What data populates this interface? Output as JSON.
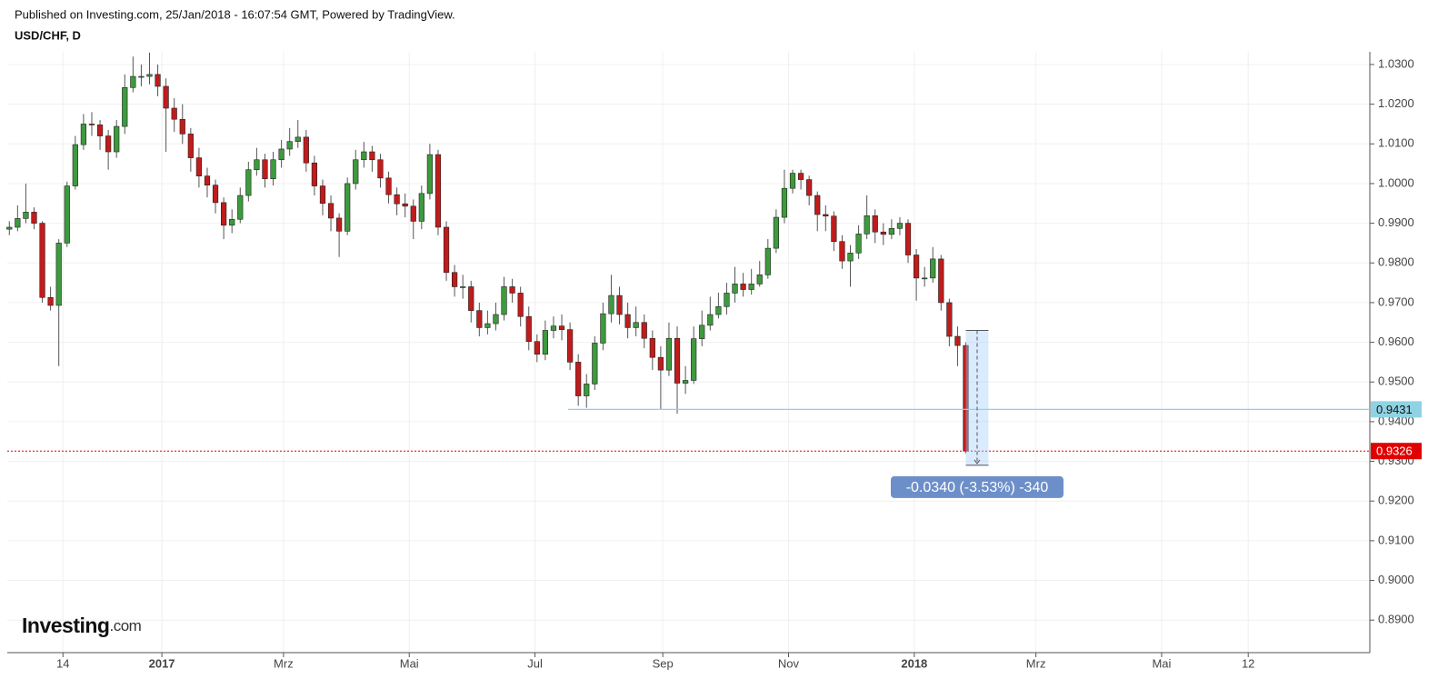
{
  "chart_data": {
    "type": "candlestick",
    "subtitle": "Published on Investing.com, 25/Jan/2018 - 16:07:54 GMT, Powered by TradingView.",
    "title": "USD/CHF, D",
    "logo": {
      "name": "Investing",
      "suffix": ".com"
    },
    "up_color": "#3d9a3d",
    "down_color": "#c01c1c",
    "grid": true,
    "xlim": [
      0,
      661
    ],
    "ylim": [
      0.8818,
      1.0332
    ],
    "xticks": [
      {
        "value": 27,
        "label": "14"
      },
      {
        "value": 75,
        "label": "2017"
      },
      {
        "value": 134,
        "label": "Mrz"
      },
      {
        "value": 195,
        "label": "Mai"
      },
      {
        "value": 256,
        "label": "Jul"
      },
      {
        "value": 318,
        "label": "Sep"
      },
      {
        "value": 379,
        "label": "Nov"
      },
      {
        "value": 440,
        "label": "2018"
      },
      {
        "value": 499,
        "label": "Mrz"
      },
      {
        "value": 560,
        "label": "Mai"
      },
      {
        "value": 602,
        "label": "12"
      }
    ],
    "yticks": [
      {
        "value": 0.89,
        "label": "0.8900"
      },
      {
        "value": 0.9,
        "label": "0.9000"
      },
      {
        "value": 0.91,
        "label": "0.9100"
      },
      {
        "value": 0.92,
        "label": "0.9200"
      },
      {
        "value": 0.93,
        "label": "0.9300"
      },
      {
        "value": 0.94,
        "label": "0.9400"
      },
      {
        "value": 0.95,
        "label": "0.9500"
      },
      {
        "value": 0.96,
        "label": "0.9600"
      },
      {
        "value": 0.97,
        "label": "0.9700"
      },
      {
        "value": 0.98,
        "label": "0.9800"
      },
      {
        "value": 0.99,
        "label": "0.9900"
      },
      {
        "value": 1.0,
        "label": "1.0000"
      },
      {
        "value": 1.01,
        "label": "1.0100"
      },
      {
        "value": 1.02,
        "label": "1.0200"
      },
      {
        "value": 1.03,
        "label": "1.0300"
      }
    ],
    "x": [
      1,
      5,
      9,
      13,
      17,
      21,
      25,
      29,
      33,
      37,
      41,
      45,
      49,
      53,
      57,
      61,
      65,
      69,
      73,
      77,
      81,
      85,
      89,
      93,
      97,
      101,
      105,
      109,
      113,
      117,
      121,
      125,
      129,
      133,
      137,
      141,
      145,
      149,
      153,
      157,
      161,
      165,
      169,
      173,
      177,
      181,
      185,
      189,
      193,
      197,
      201,
      205,
      209,
      213,
      217,
      221,
      225,
      229,
      233,
      237,
      241,
      245,
      249,
      253,
      257,
      261,
      265,
      269,
      273,
      277,
      281,
      285,
      289,
      293,
      297,
      301,
      305,
      309,
      313,
      317,
      321,
      325,
      329,
      333,
      337,
      341,
      345,
      349,
      353,
      357,
      361,
      365,
      369,
      373,
      377,
      381,
      385,
      389,
      393,
      397,
      401,
      405,
      409,
      413,
      417,
      421,
      425,
      429,
      433,
      437,
      441,
      445,
      449,
      453,
      457,
      461,
      465
    ],
    "open": [
      0.9885,
      0.989,
      0.9912,
      0.9928,
      0.99,
      0.9713,
      0.9693,
      0.985,
      0.9994,
      1.0098,
      1.015,
      1.0148,
      1.012,
      1.008,
      1.0144,
      1.0242,
      1.027,
      1.027,
      1.0275,
      1.0245,
      1.019,
      1.0162,
      1.0125,
      1.0065,
      1.0019,
      0.9996,
      0.9952,
      0.9895,
      0.991,
      0.997,
      1.0035,
      1.006,
      1.0012,
      1.006,
      1.0087,
      1.0106,
      1.0117,
      1.0052,
      0.9994,
      0.995,
      0.9913,
      0.988,
      1.0,
      1.006,
      1.008,
      1.006,
      1.0014,
      0.9972,
      0.9949,
      0.9943,
      0.9905,
      0.9975,
      1.0073,
      0.989,
      0.9776,
      0.974,
      0.974,
      0.968,
      0.9637,
      0.9647,
      0.967,
      0.974,
      0.9724,
      0.9665,
      0.9602,
      0.957,
      0.963,
      0.9641,
      0.9632,
      0.955,
      0.9465,
      0.9495,
      0.9598,
      0.9672,
      0.9718,
      0.967,
      0.9637,
      0.965,
      0.961,
      0.9562,
      0.953,
      0.961,
      0.9497,
      0.9504,
      0.9609,
      0.9643,
      0.967,
      0.969,
      0.9724,
      0.9747,
      0.9733,
      0.9747,
      0.977,
      0.9837,
      0.9915,
      0.9988,
      1.0026,
      1.001,
      0.997,
      0.9922,
      0.9918,
      0.9854,
      0.9805,
      0.9825,
      0.9873,
      0.9919,
      0.9878,
      0.9872,
      0.9887,
      0.99,
      0.982,
      0.9762,
      0.9762,
      0.981,
      0.97,
      0.9615,
      0.9592
    ],
    "high": [
      0.9905,
      0.9945,
      1.0,
      0.994,
      0.9905,
      0.974,
      0.986,
      1.0005,
      1.012,
      1.0175,
      1.018,
      1.016,
      1.0135,
      1.016,
      1.0275,
      1.032,
      1.03,
      1.033,
      1.03,
      1.0265,
      1.0215,
      1.02,
      1.014,
      1.009,
      1.004,
      1.001,
      0.9965,
      0.9935,
      0.999,
      1.0055,
      1.009,
      1.0075,
      1.008,
      1.011,
      1.014,
      1.016,
      1.0135,
      1.007,
      1.001,
      0.997,
      0.9925,
      1.0015,
      1.0085,
      1.0105,
      1.0095,
      1.0075,
      1.003,
      0.999,
      0.9975,
      0.996,
      0.9995,
      1.01,
      1.0085,
      0.9905,
      0.9795,
      0.977,
      0.9755,
      0.97,
      0.968,
      0.97,
      0.9765,
      0.976,
      0.974,
      0.969,
      0.962,
      0.9655,
      0.9665,
      0.967,
      0.965,
      0.957,
      0.952,
      0.9615,
      0.97,
      0.977,
      0.974,
      0.97,
      0.969,
      0.967,
      0.963,
      0.959,
      0.965,
      0.964,
      0.954,
      0.964,
      0.968,
      0.9715,
      0.9725,
      0.975,
      0.979,
      0.9775,
      0.9785,
      0.9805,
      0.986,
      0.9935,
      1.0035,
      1.0035,
      1.0035,
      1.002,
      0.998,
      0.9945,
      0.993,
      0.987,
      0.9845,
      0.9895,
      0.997,
      0.9935,
      0.99,
      0.991,
      0.9915,
      0.991,
      0.9835,
      0.979,
      0.984,
      0.982,
      0.971,
      0.964,
      0.96
    ],
    "low": [
      0.987,
      0.988,
      0.99,
      0.9885,
      0.97,
      0.968,
      0.954,
      0.984,
      0.9985,
      1.0085,
      1.012,
      1.0085,
      1.0035,
      1.0065,
      1.0125,
      1.023,
      1.0245,
      1.025,
      1.022,
      1.008,
      1.013,
      1.01,
      1.003,
      0.999,
      0.9965,
      0.9925,
      0.986,
      0.9875,
      0.99,
      0.9955,
      1.002,
      0.999,
      0.9995,
      1.004,
      1.007,
      1.009,
      1.003,
      0.997,
      0.992,
      0.988,
      0.9815,
      0.987,
      0.9985,
      1.004,
      1.003,
      0.999,
      0.995,
      0.992,
      0.9915,
      0.986,
      0.9885,
      0.996,
      0.987,
      0.9755,
      0.9715,
      0.971,
      0.965,
      0.9615,
      0.962,
      0.963,
      0.9655,
      0.97,
      0.964,
      0.958,
      0.955,
      0.9555,
      0.961,
      0.9605,
      0.953,
      0.944,
      0.9435,
      0.948,
      0.958,
      0.965,
      0.9645,
      0.961,
      0.9615,
      0.9585,
      0.953,
      0.943,
      0.9515,
      0.942,
      0.947,
      0.9495,
      0.959,
      0.963,
      0.966,
      0.967,
      0.97,
      0.9715,
      0.972,
      0.974,
      0.976,
      0.9825,
      0.99,
      0.9975,
      0.9985,
      0.9945,
      0.988,
      0.988,
      0.983,
      0.9785,
      0.974,
      0.981,
      0.986,
      0.985,
      0.9845,
      0.986,
      0.987,
      0.98,
      0.9705,
      0.974,
      0.975,
      0.968,
      0.959,
      0.954,
      0.932
    ],
    "close": [
      0.989,
      0.9912,
      0.9928,
      0.99,
      0.9713,
      0.9693,
      0.985,
      0.9994,
      1.0098,
      1.015,
      1.0148,
      1.012,
      1.008,
      1.0144,
      1.0242,
      1.027,
      1.027,
      1.0275,
      1.0245,
      1.019,
      1.0162,
      1.0125,
      1.0065,
      1.0019,
      0.9996,
      0.9952,
      0.9895,
      0.991,
      0.997,
      1.0035,
      1.006,
      1.0012,
      1.006,
      1.0087,
      1.0106,
      1.0117,
      1.0052,
      0.9994,
      0.995,
      0.9913,
      0.988,
      1.0,
      1.006,
      1.008,
      1.006,
      1.0014,
      0.9972,
      0.9949,
      0.9943,
      0.9905,
      0.9975,
      1.0073,
      0.989,
      0.9776,
      0.974,
      0.974,
      0.968,
      0.9637,
      0.9647,
      0.967,
      0.974,
      0.9724,
      0.9665,
      0.9602,
      0.957,
      0.963,
      0.9641,
      0.9632,
      0.955,
      0.9465,
      0.9495,
      0.9598,
      0.9672,
      0.9718,
      0.967,
      0.9637,
      0.965,
      0.961,
      0.9562,
      0.953,
      0.961,
      0.9497,
      0.9504,
      0.9609,
      0.9643,
      0.967,
      0.969,
      0.9724,
      0.9747,
      0.9733,
      0.9747,
      0.977,
      0.9837,
      0.9915,
      0.9988,
      1.0026,
      1.001,
      0.997,
      0.9922,
      0.9918,
      0.9854,
      0.9805,
      0.9825,
      0.9873,
      0.9919,
      0.9878,
      0.9872,
      0.9887,
      0.99,
      0.982,
      0.9762,
      0.9762,
      0.981,
      0.97,
      0.9615,
      0.9592,
      0.9326
    ],
    "hline": {
      "value": 0.9431,
      "label": "0.9431",
      "start": 272,
      "color": "#8fd3e3"
    },
    "last_price": {
      "value": 0.9326,
      "label": "0.9326",
      "color": "#e00000"
    },
    "measure": {
      "x": [
        465,
        476
      ],
      "y": [
        0.963,
        0.929
      ],
      "label": "-0.0340 (-3.53%) -340",
      "color": "#6d8fc9"
    }
  }
}
